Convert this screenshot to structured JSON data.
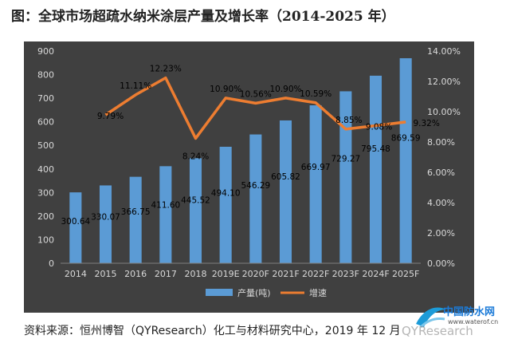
{
  "title": "图：全球市场超疏水纳米涂层产量及增长率（2014-2025 年）",
  "source": "资料来源：恒州博智（QYResearch）化工与材料研究中心，2019 年 12 月",
  "watermark": {
    "name": "中国防水网",
    "url": "www.waterof.cn",
    "brand": "QYResearch"
  },
  "colors": {
    "panel": "#404040",
    "bar": "#5b9bd5",
    "line": "#ed7d31",
    "text": "#d9d9d9",
    "label": "#000000"
  },
  "chart_data": {
    "type": "bar+line",
    "categories": [
      "2014",
      "2015",
      "2016",
      "2017",
      "2018",
      "2019E",
      "2020F",
      "2021F",
      "2022F",
      "2023F",
      "2024F",
      "2025F"
    ],
    "series": [
      {
        "name": "产量(吨)",
        "type": "bar",
        "axis": "left",
        "values": [
          300.64,
          330.07,
          366.75,
          411.6,
          445.52,
          494.1,
          546.29,
          605.82,
          669.97,
          729.27,
          795.48,
          869.59
        ],
        "labels": [
          "300.64",
          "330.07",
          "366.75",
          "411.60",
          "445.52",
          "494.10",
          "546.29",
          "605.82",
          "669.97",
          "729.27",
          "795.48",
          "869.59"
        ]
      },
      {
        "name": "增速",
        "type": "line",
        "axis": "right",
        "values": [
          null,
          9.79,
          11.11,
          12.23,
          8.24,
          10.9,
          10.56,
          10.9,
          10.59,
          8.85,
          9.08,
          9.32
        ],
        "labels": [
          "",
          "9.79%",
          "11.11%",
          "12.23%",
          "8.24%",
          "10.90%",
          "10.56%",
          "10.90%",
          "10.59%",
          "8.85%",
          "9.08%",
          "9.32%"
        ]
      }
    ],
    "y_left": {
      "min": 0,
      "max": 900,
      "ticks": [
        "0",
        "100",
        "200",
        "300",
        "400",
        "500",
        "600",
        "700",
        "800",
        "900"
      ]
    },
    "y_right": {
      "min": 0,
      "max": 14,
      "ticks": [
        "0.00%",
        "2.00%",
        "4.00%",
        "6.00%",
        "8.00%",
        "10.00%",
        "12.00%",
        "14.00%"
      ]
    },
    "grid": false,
    "legend": "bottom"
  }
}
